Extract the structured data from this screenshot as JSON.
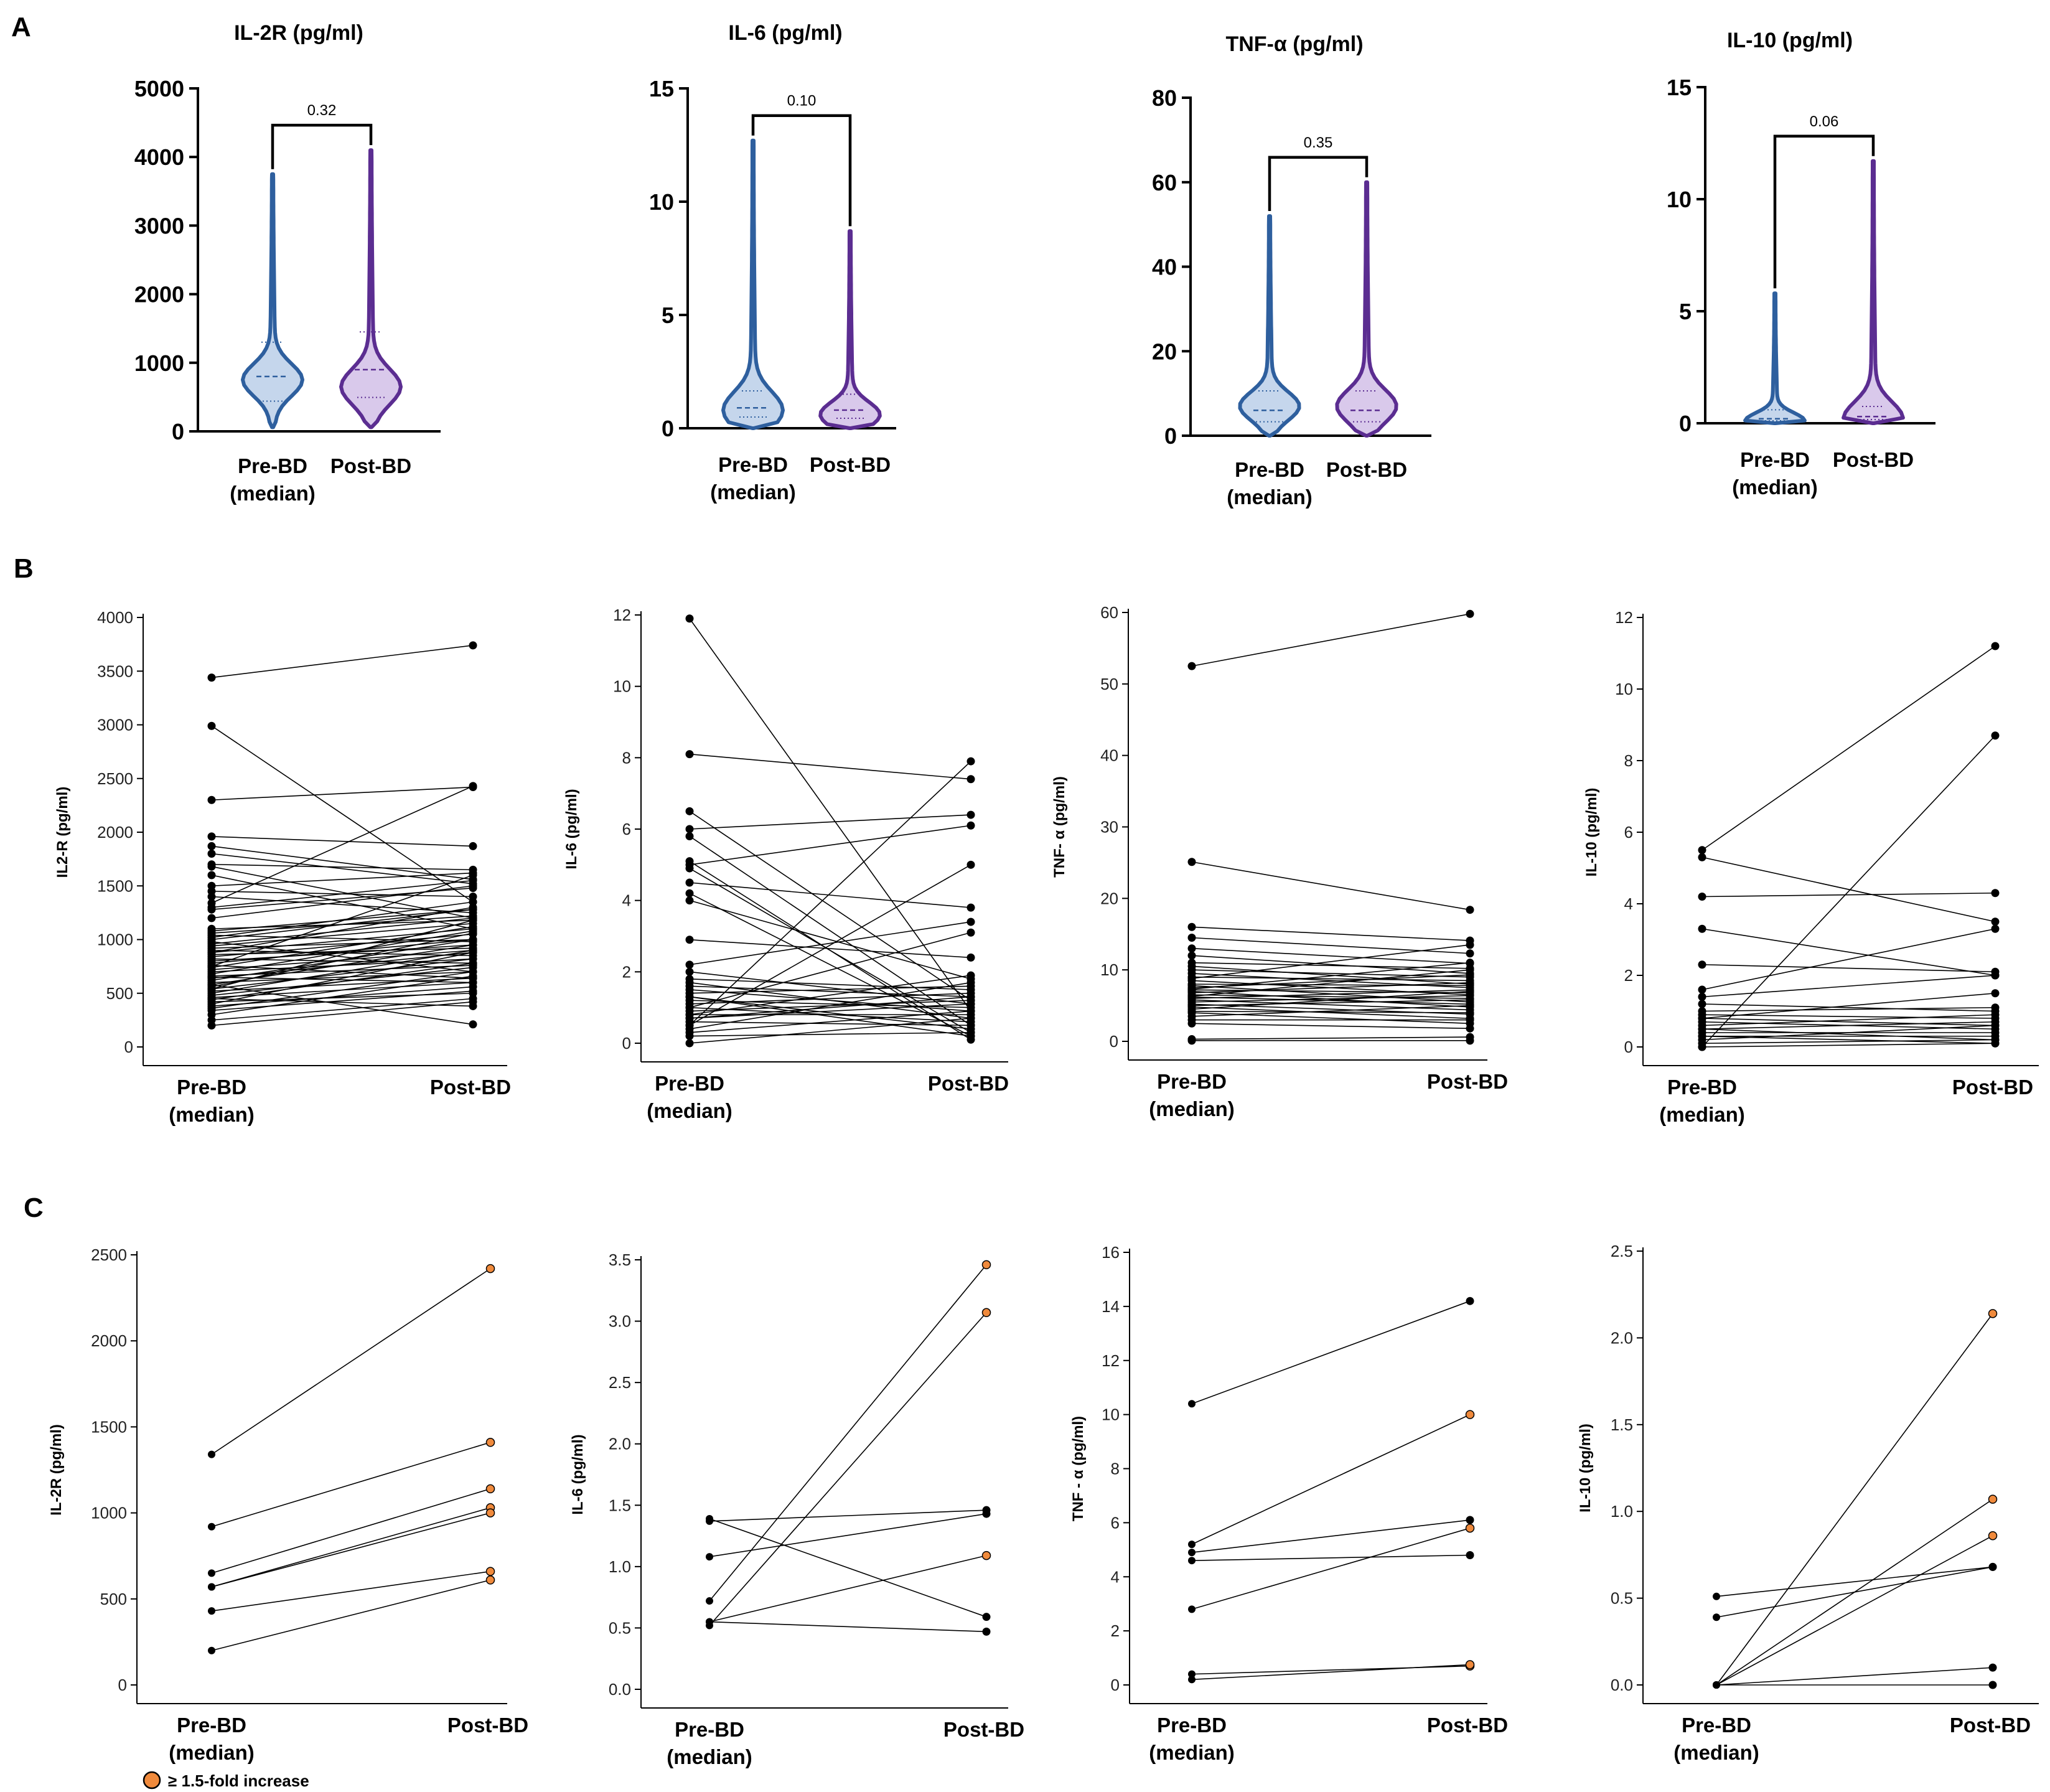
{
  "panel_labels": [
    "A",
    "B",
    "C"
  ],
  "legend": {
    "label": "≥ 1.5-fold increase",
    "color": "#f08a3c"
  },
  "colors": {
    "pre": "#2e5f9e",
    "pre_fill": "#c5d6ec",
    "post": "#5b2d91",
    "post_fill": "#d9c9eb",
    "orange": "#f08a3c",
    "line": "#000000"
  },
  "chart_data": [
    {
      "type": "violin",
      "panel": "A",
      "title": "IL-2R (pg/ml)",
      "categories": [
        "Pre-BD\n(median)",
        "Post-BD"
      ],
      "ylim": [
        0,
        5000
      ],
      "yticks": [
        0,
        1000,
        2000,
        3000,
        4000,
        5000
      ],
      "pvalue": "0.32",
      "series": [
        {
          "name": "Pre-BD",
          "min": 60,
          "median": 800,
          "max": 3750,
          "mode": 750
        },
        {
          "name": "Post-BD",
          "min": 60,
          "median": 900,
          "max": 4100,
          "mode": 650
        }
      ]
    },
    {
      "type": "violin",
      "panel": "A",
      "title": "IL-6 (pg/ml)",
      "categories": [
        "Pre-BD\n(median)",
        "Post-BD"
      ],
      "ylim": [
        0,
        15
      ],
      "yticks": [
        0,
        5,
        10,
        15
      ],
      "pvalue": "0.10",
      "series": [
        {
          "name": "Pre-BD",
          "min": 0,
          "median": 0.9,
          "max": 12.7,
          "mode": 0.8
        },
        {
          "name": "Post-BD",
          "min": 0,
          "median": 0.8,
          "max": 8.7,
          "mode": 0.6
        }
      ]
    },
    {
      "type": "violin",
      "panel": "A",
      "title": "TNF-α (pg/ml)",
      "categories": [
        "Pre-BD\n(median)",
        "Post-BD"
      ],
      "ylim": [
        0,
        80
      ],
      "yticks": [
        0,
        20,
        40,
        60,
        80
      ],
      "pvalue": "0.35",
      "series": [
        {
          "name": "Pre-BD",
          "min": 0,
          "median": 6,
          "max": 52,
          "mode": 7
        },
        {
          "name": "Post-BD",
          "min": 0,
          "median": 6,
          "max": 60,
          "mode": 7
        }
      ]
    },
    {
      "type": "violin",
      "panel": "A",
      "title": "IL-10 (pg/ml)",
      "categories": [
        "Pre-BD\n(median)",
        "Post-BD"
      ],
      "ylim": [
        0,
        15
      ],
      "yticks": [
        0,
        5,
        10,
        15
      ],
      "ytick_labels": [
        "0",
        "5",
        "10",
        "15"
      ],
      "pvalue": "0.06",
      "series": [
        {
          "name": "Pre-BD",
          "min": 0,
          "median": 0.2,
          "max": 5.8,
          "mode": 0.1
        },
        {
          "name": "Post-BD",
          "min": 0,
          "median": 0.3,
          "max": 11.7,
          "mode": 0.2
        }
      ]
    },
    {
      "type": "paired-line",
      "panel": "B",
      "ylabel": "IL2-R (pg/ml)",
      "categories": [
        "Pre-BD\n(median)",
        "Post-BD"
      ],
      "ylim": [
        0,
        4000
      ],
      "yticks": [
        0,
        500,
        1000,
        1500,
        2000,
        2500,
        3000,
        3500,
        4000
      ],
      "pairs": [
        [
          3440,
          3740
        ],
        [
          2990,
          1350
        ],
        [
          2300,
          2420
        ],
        [
          1960,
          1870
        ],
        [
          1870,
          1560
        ],
        [
          1800,
          1520
        ],
        [
          1700,
          1650
        ],
        [
          1680,
          1200
        ],
        [
          1600,
          1100
        ],
        [
          1500,
          1620
        ],
        [
          1450,
          1400
        ],
        [
          1400,
          1250
        ],
        [
          1340,
          2430
        ],
        [
          1300,
          1550
        ],
        [
          1280,
          1480
        ],
        [
          1200,
          1500
        ],
        [
          1100,
          1180
        ],
        [
          1060,
          1220
        ],
        [
          1040,
          980
        ],
        [
          1020,
          1350
        ],
        [
          1000,
          1280
        ],
        [
          980,
          700
        ],
        [
          960,
          1200
        ],
        [
          940,
          1150
        ],
        [
          920,
          1000
        ],
        [
          900,
          850
        ],
        [
          880,
          1100
        ],
        [
          860,
          920
        ],
        [
          840,
          1050
        ],
        [
          820,
          780
        ],
        [
          800,
          950
        ],
        [
          780,
          1000
        ],
        [
          760,
          640
        ],
        [
          740,
          1120
        ],
        [
          720,
          900
        ],
        [
          700,
          820
        ],
        [
          680,
          1080
        ],
        [
          660,
          760
        ],
        [
          640,
          880
        ],
        [
          620,
          1000
        ],
        [
          600,
          700
        ],
        [
          580,
          950
        ],
        [
          560,
          1060
        ],
        [
          540,
          820
        ],
        [
          520,
          640
        ],
        [
          500,
          900
        ],
        [
          480,
          740
        ],
        [
          460,
          600
        ],
        [
          440,
          780
        ],
        [
          420,
          500
        ],
        [
          400,
          880
        ],
        [
          380,
          560
        ],
        [
          360,
          700
        ],
        [
          340,
          520
        ],
        [
          300,
          660
        ],
        [
          250,
          450
        ],
        [
          200,
          420
        ],
        [
          580,
          210
        ],
        [
          1080,
          1280
        ],
        [
          880,
          1300
        ],
        [
          750,
          1600
        ],
        [
          650,
          600
        ],
        [
          540,
          1180
        ],
        [
          450,
          380
        ]
      ]
    },
    {
      "type": "paired-line",
      "panel": "B",
      "ylabel": "IL-6 (pg/ml)",
      "categories": [
        "Pre-BD\n(median)",
        "Post-BD"
      ],
      "ylim": [
        0,
        12
      ],
      "yticks": [
        0,
        2,
        4,
        6,
        8,
        10,
        12
      ],
      "pairs": [
        [
          11.9,
          0.9
        ],
        [
          8.1,
          7.4
        ],
        [
          6.5,
          1.2
        ],
        [
          6.0,
          6.4
        ],
        [
          5.8,
          0.5
        ],
        [
          5.1,
          0.1
        ],
        [
          5.0,
          6.1
        ],
        [
          4.9,
          0.3
        ],
        [
          4.5,
          3.8
        ],
        [
          4.2,
          0.2
        ],
        [
          4.0,
          1.8
        ],
        [
          2.9,
          2.4
        ],
        [
          2.2,
          3.4
        ],
        [
          2.0,
          1.1
        ],
        [
          1.8,
          1.5
        ],
        [
          1.7,
          0.7
        ],
        [
          1.6,
          1.3
        ],
        [
          1.5,
          0.9
        ],
        [
          1.4,
          1.6
        ],
        [
          1.3,
          0.4
        ],
        [
          1.2,
          1.0
        ],
        [
          1.1,
          1.4
        ],
        [
          1.0,
          0.6
        ],
        [
          0.9,
          1.2
        ],
        [
          0.8,
          0.8
        ],
        [
          0.7,
          1.1
        ],
        [
          0.6,
          0.5
        ],
        [
          0.5,
          7.9
        ],
        [
          0.4,
          1.7
        ],
        [
          0.3,
          0.9
        ],
        [
          0.2,
          0.3
        ],
        [
          0.0,
          0.7
        ],
        [
          1.0,
          3.1
        ],
        [
          0.5,
          5.0
        ],
        [
          0.8,
          1.9
        ],
        [
          1.3,
          0.2
        ],
        [
          0.7,
          1.3
        ]
      ]
    },
    {
      "type": "paired-line",
      "panel": "B",
      "ylabel": "TNF- α (pg/ml)",
      "categories": [
        "Pre-BD\n(median)",
        "Post-BD"
      ],
      "ylim": [
        0,
        60
      ],
      "yticks": [
        0,
        10,
        20,
        30,
        40,
        50,
        60
      ],
      "pairs": [
        [
          52.5,
          59.8
        ],
        [
          25.1,
          18.4
        ],
        [
          16.0,
          14.1
        ],
        [
          14.5,
          12.3
        ],
        [
          13.0,
          10.9
        ],
        [
          12.0,
          9.5
        ],
        [
          11.0,
          10.2
        ],
        [
          10.5,
          8.0
        ],
        [
          10.0,
          9.0
        ],
        [
          9.5,
          7.5
        ],
        [
          9.0,
          8.5
        ],
        [
          8.5,
          6.5
        ],
        [
          8.0,
          7.8
        ],
        [
          7.8,
          5.5
        ],
        [
          7.5,
          9.3
        ],
        [
          7.2,
          6.8
        ],
        [
          7.0,
          4.8
        ],
        [
          6.8,
          8.2
        ],
        [
          6.5,
          6.0
        ],
        [
          6.2,
          5.2
        ],
        [
          6.0,
          7.2
        ],
        [
          5.8,
          4.4
        ],
        [
          5.5,
          6.4
        ],
        [
          5.2,
          3.8
        ],
        [
          5.0,
          5.8
        ],
        [
          4.8,
          3.2
        ],
        [
          4.5,
          7.0
        ],
        [
          4.2,
          4.0
        ],
        [
          4.0,
          2.5
        ],
        [
          3.5,
          5.0
        ],
        [
          3.0,
          3.0
        ],
        [
          2.5,
          1.8
        ],
        [
          0.3,
          0.6
        ],
        [
          0.1,
          0.1
        ],
        [
          8.8,
          13.5
        ],
        [
          7.3,
          11.0
        ],
        [
          6.3,
          10.0
        ]
      ]
    },
    {
      "type": "paired-line",
      "panel": "B",
      "ylabel": "IL-10 (pg/ml)",
      "categories": [
        "Pre-BD\n(median)",
        "Post-BD"
      ],
      "ylim": [
        0,
        12
      ],
      "yticks": [
        0,
        2,
        4,
        6,
        8,
        10,
        12
      ],
      "pairs": [
        [
          5.5,
          11.2
        ],
        [
          5.3,
          3.5
        ],
        [
          4.2,
          4.3
        ],
        [
          3.3,
          2.0
        ],
        [
          2.3,
          2.1
        ],
        [
          1.6,
          3.3
        ],
        [
          1.4,
          2.0
        ],
        [
          1.2,
          1.0
        ],
        [
          1.0,
          1.1
        ],
        [
          0.9,
          0.8
        ],
        [
          0.8,
          0.6
        ],
        [
          0.7,
          0.5
        ],
        [
          0.6,
          0.9
        ],
        [
          0.5,
          0.7
        ],
        [
          0.4,
          0.4
        ],
        [
          0.3,
          0.3
        ],
        [
          0.2,
          0.6
        ],
        [
          0.1,
          0.2
        ],
        [
          0.0,
          8.7
        ],
        [
          0.0,
          0.1
        ],
        [
          0.8,
          1.5
        ],
        [
          0.3,
          0.1
        ],
        [
          0.5,
          0.2
        ]
      ]
    },
    {
      "type": "paired-line",
      "panel": "C",
      "ylabel": "IL-2R (pg/ml)",
      "categories": [
        "Pre-BD\n(median)",
        "Post-BD"
      ],
      "ylim": [
        0,
        2500
      ],
      "yticks": [
        0,
        500,
        1000,
        1500,
        2000,
        2500
      ],
      "pairs": [
        [
          1340,
          2420,
          true
        ],
        [
          920,
          1410,
          true
        ],
        [
          650,
          1140,
          true
        ],
        [
          570,
          1030,
          true
        ],
        [
          570,
          1000,
          true
        ],
        [
          430,
          660,
          true
        ],
        [
          200,
          610,
          true
        ]
      ]
    },
    {
      "type": "paired-line",
      "panel": "C",
      "ylabel": "IL-6 (pg/ml)",
      "categories": [
        "Pre-BD\n(median)",
        "Post-BD"
      ],
      "ylim": [
        0,
        3.5
      ],
      "yticks": [
        0.0,
        0.5,
        1.0,
        1.5,
        2.0,
        2.5,
        3.0,
        3.5
      ],
      "tick_decimals": 1,
      "pairs": [
        [
          1.39,
          0.59,
          false
        ],
        [
          1.37,
          1.46,
          false
        ],
        [
          1.08,
          1.43,
          false
        ],
        [
          0.72,
          3.46,
          true
        ],
        [
          0.55,
          1.09,
          true
        ],
        [
          0.52,
          3.07,
          true
        ],
        [
          0.55,
          0.47,
          false
        ]
      ]
    },
    {
      "type": "paired-line",
      "panel": "C",
      "ylabel": "TNF - α   (pg/ml)",
      "categories": [
        "Pre-BD\n(median)",
        "Post-BD"
      ],
      "ylim": [
        0,
        16
      ],
      "yticks": [
        0,
        2,
        4,
        6,
        8,
        10,
        12,
        14,
        16
      ],
      "pairs": [
        [
          10.4,
          14.2,
          false
        ],
        [
          5.2,
          10.0,
          true
        ],
        [
          4.9,
          6.1,
          false
        ],
        [
          4.6,
          4.8,
          false
        ],
        [
          2.8,
          5.8,
          true
        ],
        [
          0.4,
          0.7,
          true
        ],
        [
          0.2,
          0.75,
          true
        ]
      ]
    },
    {
      "type": "paired-line",
      "panel": "C",
      "ylabel": "IL-10 (pg/ml)",
      "categories": [
        "Pre-BD\n(median)",
        "Post-BD"
      ],
      "ylim": [
        0,
        2.5
      ],
      "yticks": [
        0.0,
        0.5,
        1.0,
        1.5,
        2.0,
        2.5
      ],
      "tick_decimals": 1,
      "pairs": [
        [
          0.51,
          0.68,
          false
        ],
        [
          0.39,
          0.68,
          false
        ],
        [
          0.0,
          2.14,
          true
        ],
        [
          0.0,
          1.07,
          true
        ],
        [
          0.0,
          0.86,
          true
        ],
        [
          0.0,
          0.1,
          false
        ],
        [
          0.0,
          0.0,
          false
        ]
      ]
    }
  ]
}
